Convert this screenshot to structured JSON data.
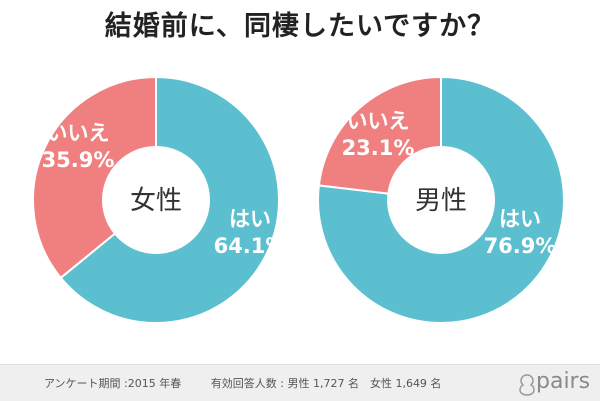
{
  "title": "結婚前に、同棲したいですか？",
  "chart_data": [
    {
      "type": "pie",
      "center_label": "女性",
      "slices": [
        {
          "label": "はい",
          "value": 64.1,
          "display": "64.1%",
          "color": "#5bbfcf"
        },
        {
          "label": "いいえ",
          "value": 35.9,
          "display": "35.9%",
          "color": "#f08080"
        }
      ]
    },
    {
      "type": "pie",
      "center_label": "男性",
      "slices": [
        {
          "label": "はい",
          "value": 76.9,
          "display": "76.9%",
          "color": "#5bbfcf"
        },
        {
          "label": "いいえ",
          "value": 23.1,
          "display": "23.1%",
          "color": "#f08080"
        }
      ]
    }
  ],
  "footer": {
    "period": "アンケート期間 :2015 年春",
    "respondents": "有効回答人数 : 男性 1,727 名　女性 1,649 名",
    "logo_text": "pairs"
  }
}
